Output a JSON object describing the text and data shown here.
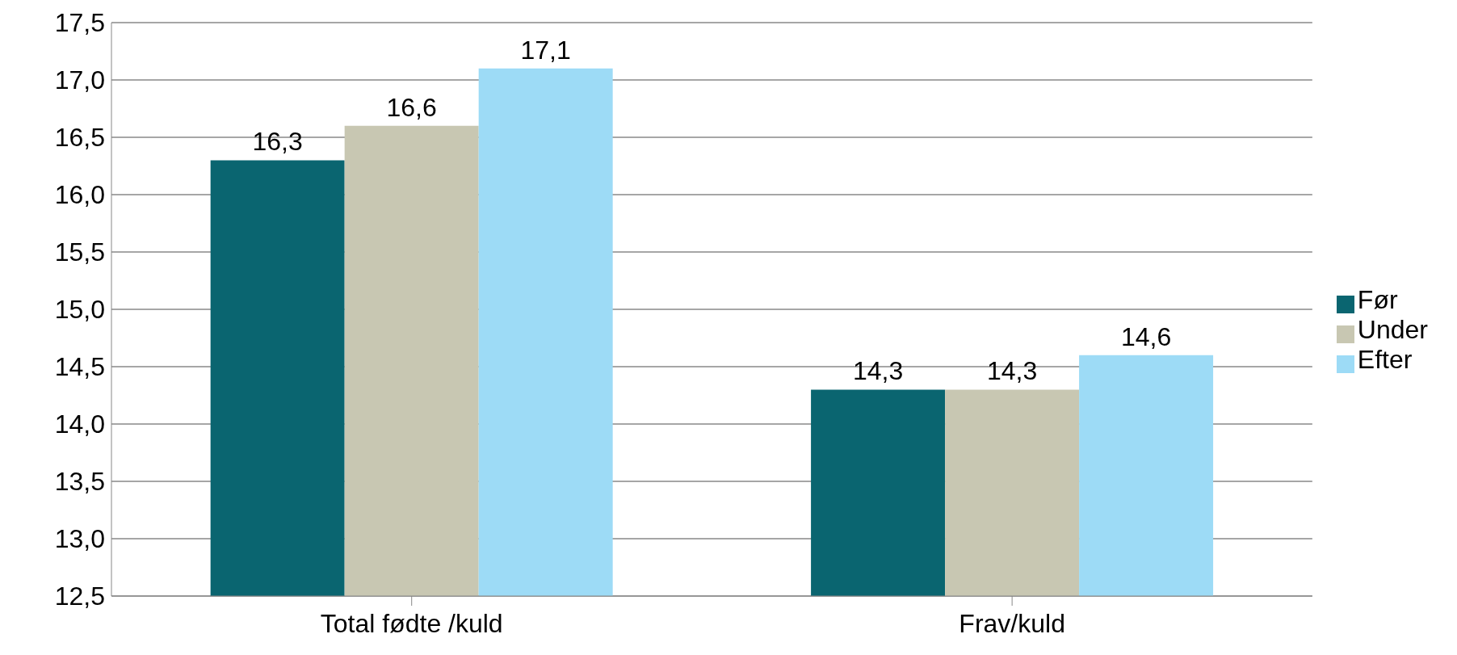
{
  "chart_data": {
    "type": "bar",
    "categories": [
      "Total fødte /kuld",
      "Frav/kuld"
    ],
    "series": [
      {
        "name": "Før",
        "color": "#0a6570",
        "values": [
          16.3,
          14.3
        ],
        "value_labels": [
          "16,3",
          "14,3"
        ]
      },
      {
        "name": "Under",
        "color": "#c8c7b2",
        "values": [
          16.6,
          14.3
        ],
        "value_labels": [
          "16,6",
          "14,3"
        ]
      },
      {
        "name": "Efter",
        "color": "#9ddbf6",
        "values": [
          17.1,
          14.6
        ],
        "value_labels": [
          "17,1",
          "14,6"
        ]
      }
    ],
    "ylim": [
      12.5,
      17.5
    ],
    "yticks": [
      {
        "value": 12.5,
        "label": "12,5"
      },
      {
        "value": 13,
        "label": "13,0"
      },
      {
        "value": 13.5,
        "label": "13,5"
      },
      {
        "value": 14,
        "label": "14,0"
      },
      {
        "value": 14.5,
        "label": "14,5"
      },
      {
        "value": 15,
        "label": "15,0"
      },
      {
        "value": 15.5,
        "label": "15,5"
      },
      {
        "value": 16,
        "label": "16,0"
      },
      {
        "value": 16.5,
        "label": "16,5"
      },
      {
        "value": 17,
        "label": "17,0"
      },
      {
        "value": 17.5,
        "label": "17,5"
      }
    ],
    "grid": "y",
    "legend": "right"
  }
}
